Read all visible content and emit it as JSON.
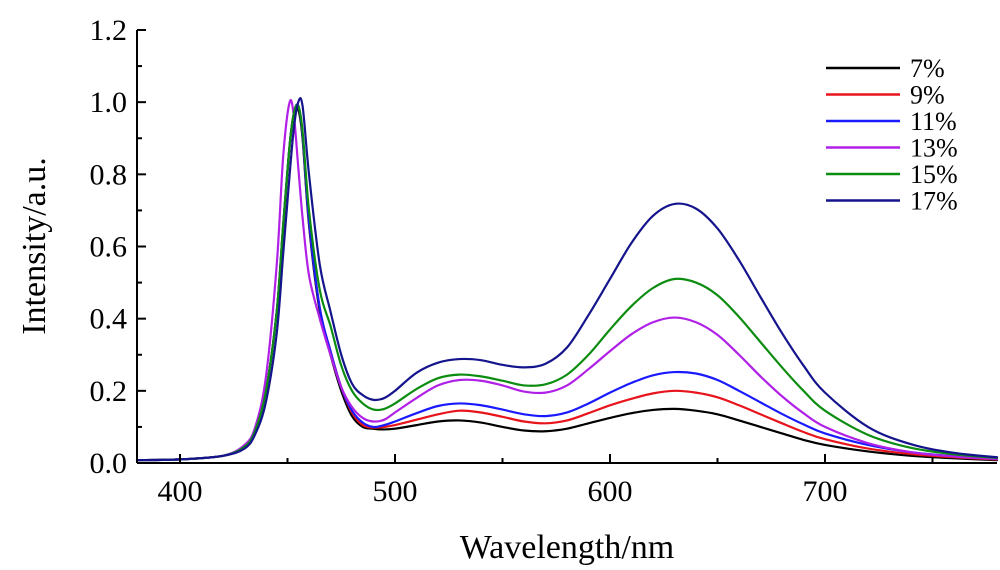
{
  "chart_data": {
    "type": "line",
    "title": "",
    "xlabel": "Wavelength/nm",
    "ylabel": "Intensity/a.u.",
    "xlim": [
      380,
      780
    ],
    "ylim": [
      0.0,
      1.2
    ],
    "x_ticks": [
      400,
      500,
      600,
      700
    ],
    "x_tick_labels": [
      "400",
      "500",
      "600",
      "700"
    ],
    "y_ticks": [
      0.0,
      0.2,
      0.4,
      0.6,
      0.8,
      1.0,
      1.2
    ],
    "y_tick_labels": [
      "0.0",
      "0.2",
      "0.4",
      "0.6",
      "0.8",
      "1.0",
      "1.2"
    ],
    "grid": false,
    "legend_position": "top-right",
    "x": [
      380,
      400,
      420,
      430,
      435,
      440,
      445,
      448,
      451,
      453,
      455,
      457,
      460,
      465,
      470,
      475,
      480,
      485,
      490,
      495,
      500,
      510,
      520,
      530,
      540,
      550,
      560,
      570,
      580,
      590,
      600,
      610,
      620,
      630,
      640,
      650,
      660,
      670,
      680,
      690,
      700,
      720,
      740,
      760,
      780
    ],
    "series": [
      {
        "name": "7%",
        "color": "#000000",
        "values": [
          0.008,
          0.01,
          0.02,
          0.045,
          0.09,
          0.2,
          0.42,
          0.65,
          0.88,
          0.97,
          0.98,
          0.9,
          0.66,
          0.42,
          0.3,
          0.2,
          0.13,
          0.1,
          0.095,
          0.093,
          0.095,
          0.105,
          0.115,
          0.118,
          0.112,
          0.1,
          0.09,
          0.088,
          0.095,
          0.11,
          0.125,
          0.138,
          0.147,
          0.15,
          0.145,
          0.135,
          0.118,
          0.1,
          0.082,
          0.064,
          0.05,
          0.032,
          0.02,
          0.013,
          0.008
        ]
      },
      {
        "name": "9%",
        "color": "#e8141c",
        "values": [
          0.008,
          0.01,
          0.02,
          0.045,
          0.09,
          0.2,
          0.42,
          0.66,
          0.88,
          0.97,
          0.99,
          0.91,
          0.67,
          0.43,
          0.31,
          0.21,
          0.14,
          0.105,
          0.098,
          0.1,
          0.105,
          0.12,
          0.135,
          0.145,
          0.14,
          0.128,
          0.115,
          0.11,
          0.118,
          0.138,
          0.16,
          0.178,
          0.193,
          0.2,
          0.195,
          0.182,
          0.16,
          0.135,
          0.11,
          0.086,
          0.066,
          0.04,
          0.025,
          0.016,
          0.01
        ]
      },
      {
        "name": "11%",
        "color": "#1a1aff",
        "values": [
          0.008,
          0.01,
          0.02,
          0.045,
          0.09,
          0.2,
          0.42,
          0.66,
          0.88,
          0.97,
          0.99,
          0.91,
          0.67,
          0.43,
          0.31,
          0.21,
          0.145,
          0.112,
          0.1,
          0.105,
          0.115,
          0.138,
          0.158,
          0.165,
          0.16,
          0.148,
          0.135,
          0.13,
          0.14,
          0.165,
          0.195,
          0.222,
          0.243,
          0.252,
          0.248,
          0.23,
          0.2,
          0.168,
          0.136,
          0.107,
          0.082,
          0.05,
          0.03,
          0.019,
          0.012
        ]
      },
      {
        "name": "13%",
        "color": "#b020e6",
        "values": [
          0.008,
          0.01,
          0.02,
          0.05,
          0.1,
          0.24,
          0.55,
          0.85,
          1.0,
          0.96,
          0.82,
          0.68,
          0.52,
          0.4,
          0.3,
          0.21,
          0.155,
          0.125,
          0.115,
          0.12,
          0.14,
          0.18,
          0.215,
          0.23,
          0.228,
          0.215,
          0.198,
          0.195,
          0.215,
          0.26,
          0.31,
          0.357,
          0.39,
          0.403,
          0.39,
          0.355,
          0.3,
          0.24,
          0.185,
          0.138,
          0.1,
          0.055,
          0.03,
          0.018,
          0.011
        ]
      },
      {
        "name": "15%",
        "color": "#0c8c10",
        "values": [
          0.008,
          0.01,
          0.02,
          0.045,
          0.09,
          0.2,
          0.42,
          0.66,
          0.88,
          0.97,
          0.99,
          0.92,
          0.7,
          0.48,
          0.38,
          0.27,
          0.2,
          0.165,
          0.148,
          0.15,
          0.165,
          0.205,
          0.235,
          0.245,
          0.24,
          0.228,
          0.215,
          0.218,
          0.245,
          0.3,
          0.37,
          0.435,
          0.485,
          0.51,
          0.5,
          0.465,
          0.405,
          0.335,
          0.265,
          0.2,
          0.145,
          0.078,
          0.042,
          0.024,
          0.014
        ]
      },
      {
        "name": "17%",
        "color": "#14148c",
        "values": [
          0.008,
          0.01,
          0.02,
          0.04,
          0.08,
          0.17,
          0.36,
          0.58,
          0.8,
          0.93,
          1.0,
          0.99,
          0.8,
          0.55,
          0.42,
          0.3,
          0.22,
          0.188,
          0.175,
          0.18,
          0.2,
          0.25,
          0.278,
          0.288,
          0.285,
          0.272,
          0.265,
          0.275,
          0.32,
          0.41,
          0.51,
          0.61,
          0.685,
          0.718,
          0.705,
          0.65,
          0.562,
          0.46,
          0.36,
          0.27,
          0.195,
          0.1,
          0.052,
          0.028,
          0.016
        ]
      }
    ]
  }
}
